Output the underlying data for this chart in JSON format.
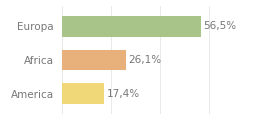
{
  "categories": [
    "Europa",
    "Africa",
    "America"
  ],
  "values": [
    56.5,
    26.1,
    17.4
  ],
  "labels": [
    "56,5%",
    "26,1%",
    "17,4%"
  ],
  "bar_colors": [
    "#a8c488",
    "#e8b07a",
    "#f0d878"
  ],
  "background_color": "#ffffff",
  "xlim": [
    0,
    75
  ],
  "bar_height": 0.62,
  "label_fontsize": 7.5,
  "category_fontsize": 7.5,
  "text_color": "#777777"
}
